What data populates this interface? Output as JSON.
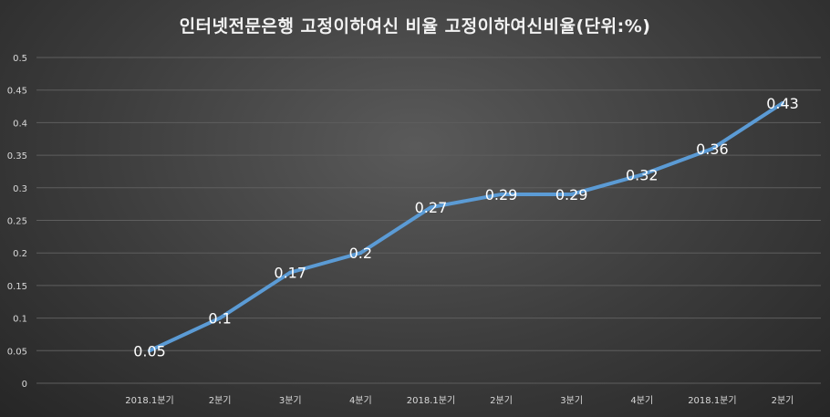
{
  "chart_data": {
    "type": "line",
    "title": "인터넷전문은행  고정이하여신 비율 고정이하여신비율(단위:%)",
    "xlabel": "",
    "ylabel": "",
    "categories": [
      "2018.1분기",
      "2분기",
      "3분기",
      "4분기",
      "2018.1분기",
      "2분기",
      "3분기",
      "4분기",
      "2018.1분기",
      "2분기"
    ],
    "series": [
      {
        "values": [
          0.05,
          0.1,
          0.17,
          0.2,
          0.27,
          0.29,
          0.29,
          0.32,
          0.36,
          0.43
        ],
        "labels": [
          "0.05",
          "0.1",
          "0.17",
          "0.2",
          "0.27",
          "0.29",
          "0.29",
          "0.32",
          "0.36",
          "0.43"
        ],
        "color": "#5b9bd5"
      }
    ],
    "ylim": [
      0,
      0.5
    ],
    "yticks": [
      0,
      0.05,
      0.1,
      0.15,
      0.2,
      0.25,
      0.3,
      0.35,
      0.4,
      0.45,
      0.5
    ],
    "ytick_labels": [
      "0",
      "0.05",
      "0.1",
      "0.15",
      "0.2",
      "0.25",
      "0.3",
      "0.35",
      "0.4",
      "0.45",
      "0.5"
    ],
    "grid": true,
    "legend": "none"
  }
}
